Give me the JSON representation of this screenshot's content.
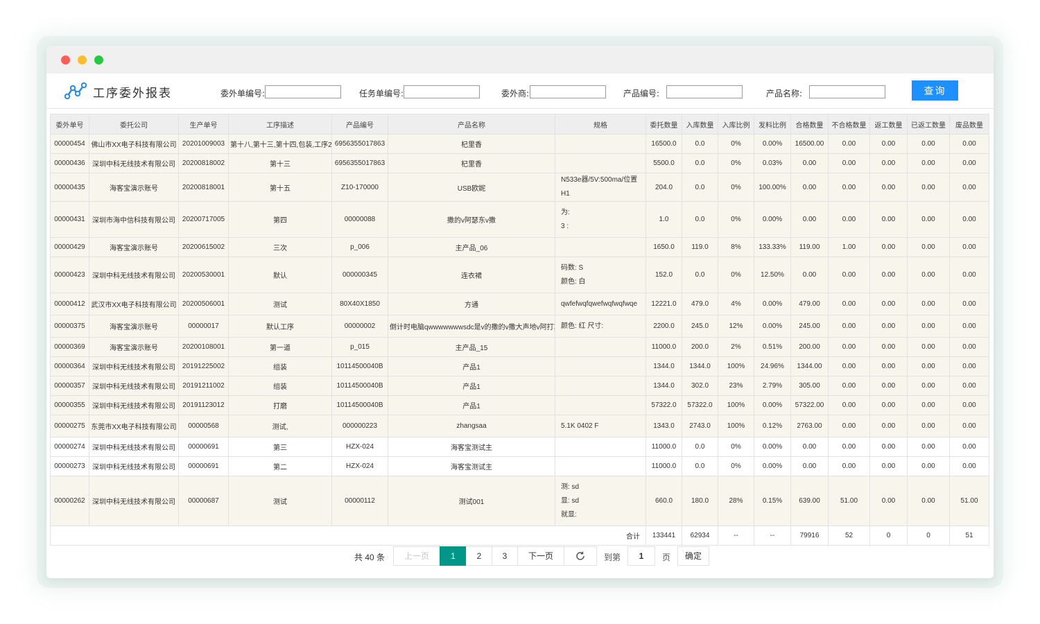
{
  "header": {
    "title": "工序委外报表"
  },
  "filters": [
    {
      "label": "委外单编号:",
      "value": ""
    },
    {
      "label": "任务单编号:",
      "value": ""
    },
    {
      "label": "委外商:",
      "value": ""
    },
    {
      "label": "产品编号:",
      "value": ""
    },
    {
      "label": "产品名称:",
      "value": ""
    }
  ],
  "query_label": "查询",
  "columns": [
    "委外单号",
    "委托公司",
    "生产单号",
    "工序描述",
    "产品编号",
    "产品名称",
    "规格",
    "委托数量",
    "入库数量",
    "入库比例",
    "发料比例",
    "合格数量",
    "不合格数量",
    "返工数量",
    "已返工数量",
    "废品数量"
  ],
  "rows": [
    [
      "00000454",
      "佛山市XX电子科技有限公司",
      "20201009003",
      "第十八,第十三,第十四,包装,工序2",
      "6956355017863",
      "杞里香",
      "",
      "16500.0",
      "0.0",
      "0%",
      "0.00%",
      "16500.00",
      "0.00",
      "0.00",
      "0.00",
      "0.00"
    ],
    [
      "00000436",
      "深圳中科无线技术有限公司",
      "20200818002",
      "第十三",
      "6956355017863",
      "杞里香",
      "",
      "5500.0",
      "0.0",
      "0%",
      "0.03%",
      "0.00",
      "0.00",
      "0.00",
      "0.00",
      "0.00"
    ],
    [
      "00000435",
      "海客宝演示账号",
      "20200818001",
      "第十五",
      "Z10-170000",
      "USB欧妮",
      "N533e器/5V:500ma/位置H1",
      "204.0",
      "0.0",
      "0%",
      "100.00%",
      "0.00",
      "0.00",
      "0.00",
      "0.00",
      "0.00"
    ],
    [
      "00000431",
      "深圳市海中信科技有限公司",
      "20200717005",
      "第四",
      "00000088",
      "撒的v阿瑟东v撒",
      "为:\n3 :",
      "1.0",
      "0.0",
      "0%",
      "0.00%",
      "0.00",
      "0.00",
      "0.00",
      "0.00",
      "0.00"
    ],
    [
      "00000429",
      "海客宝演示账号",
      "20200615002",
      "三次",
      "p_006",
      "主产品_06",
      "",
      "1650.0",
      "119.0",
      "8%",
      "133.33%",
      "119.00",
      "1.00",
      "0.00",
      "0.00",
      "0.00"
    ],
    [
      "00000423",
      "深圳中科无线技术有限公司",
      "20200530001",
      "默认",
      "000000345",
      "连衣裙",
      "码数: S\n颜色: 白",
      "152.0",
      "0.0",
      "0%",
      "12.50%",
      "0.00",
      "0.00",
      "0.00",
      "0.00",
      "0.00"
    ],
    [
      "00000412",
      "武汉市XX电子科技有限公司",
      "20200506001",
      "测试",
      "80X40X1850",
      "方通",
      "qwfefwqfqwefwqfwqfwqe",
      "12221.0",
      "479.0",
      "4%",
      "0.00%",
      "479.00",
      "0.00",
      "0.00",
      "0.00",
      "0.00"
    ],
    [
      "00000375",
      "海客宝演示账号",
      "00000017",
      "默认工序",
      "00000002",
      "倒计时电脑qwwwwwwwsdc是v的撒的v撒大声地v阿打算",
      "颜色: 红 尺寸:",
      "2200.0",
      "245.0",
      "12%",
      "0.00%",
      "245.00",
      "0.00",
      "0.00",
      "0.00",
      "0.00"
    ],
    [
      "00000369",
      "海客宝演示账号",
      "20200108001",
      "第一道",
      "p_015",
      "主产品_15",
      "",
      "11000.0",
      "200.0",
      "2%",
      "0.51%",
      "200.00",
      "0.00",
      "0.00",
      "0.00",
      "0.00"
    ],
    [
      "00000364",
      "深圳中科无线技术有限公司",
      "20191225002",
      "组装",
      "10114500040B",
      "产品1",
      "",
      "1344.0",
      "1344.0",
      "100%",
      "24.96%",
      "1344.00",
      "0.00",
      "0.00",
      "0.00",
      "0.00"
    ],
    [
      "00000357",
      "深圳中科无线技术有限公司",
      "20191211002",
      "组装",
      "10114500040B",
      "产品1",
      "",
      "1344.0",
      "302.0",
      "23%",
      "2.79%",
      "305.00",
      "0.00",
      "0.00",
      "0.00",
      "0.00"
    ],
    [
      "00000355",
      "深圳中科无线技术有限公司",
      "20191123012",
      "打磨",
      "10114500040B",
      "产品1",
      "",
      "57322.0",
      "57322.0",
      "100%",
      "0.00%",
      "57322.00",
      "0.00",
      "0.00",
      "0.00",
      "0.00"
    ],
    [
      "00000275",
      "东莞市XX电子科技有限公司",
      "00000568",
      "测试,",
      "000000223",
      "zhangsaa",
      "5.1K 0402 F",
      "1343.0",
      "2743.0",
      "100%",
      "0.12%",
      "2763.00",
      "0.00",
      "0.00",
      "0.00",
      "0.00"
    ],
    [
      "00000274",
      "深圳中科无线技术有限公司",
      "00000691",
      "第三",
      "HZX-024",
      "海客宝测试主",
      "",
      "11000.0",
      "0.0",
      "0%",
      "0.00%",
      "0.00",
      "0.00",
      "0.00",
      "0.00",
      "0.00"
    ],
    [
      "00000273",
      "深圳中科无线技术有限公司",
      "00000691",
      "第二",
      "HZX-024",
      "海客宝测试主",
      "",
      "11000.0",
      "0.0",
      "0%",
      "0.00%",
      "0.00",
      "0.00",
      "0.00",
      "0.00",
      "0.00"
    ],
    [
      "00000262",
      "深圳中科无线技术有限公司",
      "00000687",
      "测试",
      "00000112",
      "测试001",
      "测: sd\n显: sd\n就显:",
      "660.0",
      "180.0",
      "28%",
      "0.15%",
      "639.00",
      "51.00",
      "0.00",
      "0.00",
      "51.00"
    ]
  ],
  "totals": {
    "label": "合计",
    "values": [
      "133441",
      "62934",
      "--",
      "--",
      "79916",
      "52",
      "0",
      "0",
      "51"
    ]
  },
  "pagination": {
    "total_text": "共 40 条",
    "prev_label": "上一页",
    "pages": [
      "1",
      "2",
      "3"
    ],
    "next_label": "下一页",
    "goto_label": "到第",
    "goto_value": "1",
    "page_unit": "页",
    "confirm_label": "确定"
  }
}
